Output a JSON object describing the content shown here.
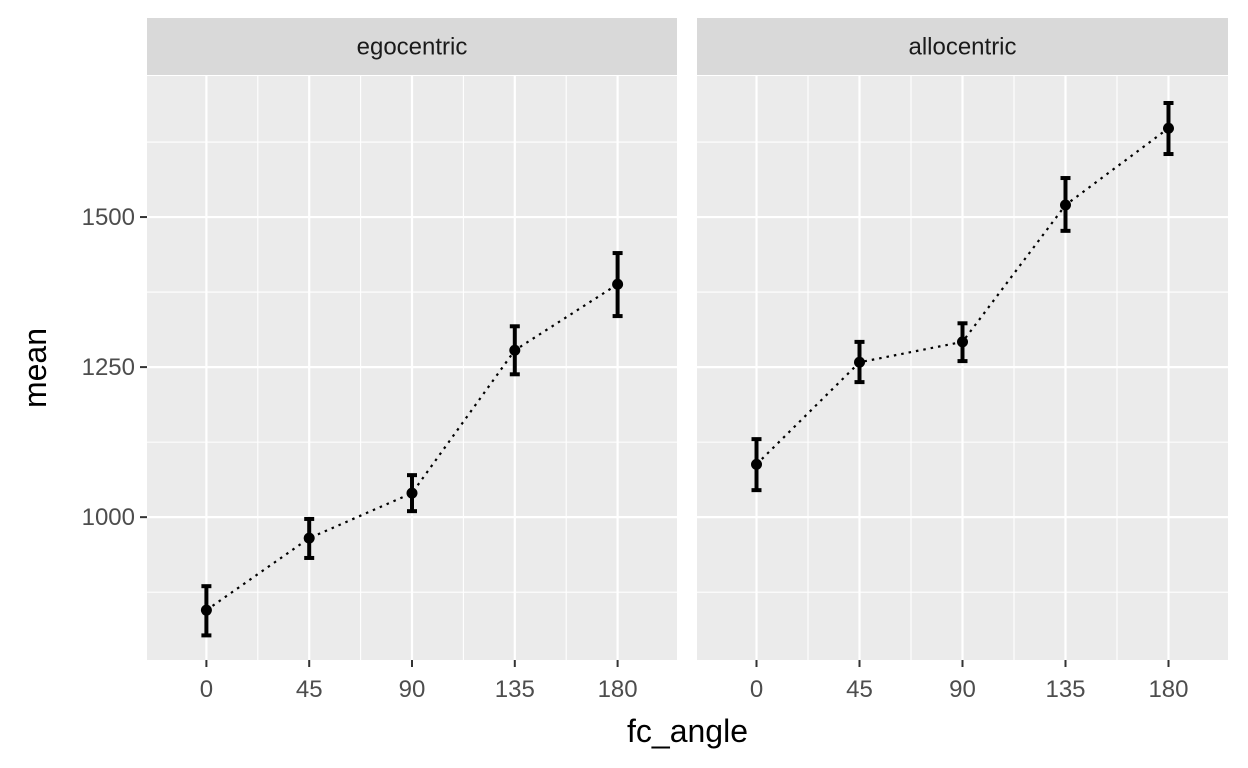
{
  "chart_data": {
    "type": "line",
    "xlabel": "fc_angle",
    "ylabel": "mean",
    "x": [
      0,
      45,
      90,
      135,
      180
    ],
    "x_ticks": [
      "0",
      "45",
      "90",
      "135",
      "180"
    ],
    "y_ticks": [
      "1000",
      "1250",
      "1500"
    ],
    "y_tick_values": [
      1000,
      1250,
      1500
    ],
    "ylim": [
      762,
      1735
    ],
    "grid": true,
    "panels": [
      {
        "label": "egocentric",
        "mean": [
          845,
          965,
          1040,
          1278,
          1388
        ],
        "lower": [
          803,
          932,
          1010,
          1238,
          1335
        ],
        "upper": [
          885,
          997,
          1070,
          1318,
          1440
        ]
      },
      {
        "label": "allocentric",
        "mean": [
          1088,
          1258,
          1292,
          1520,
          1648
        ],
        "lower": [
          1045,
          1225,
          1260,
          1477,
          1605
        ],
        "upper": [
          1130,
          1292,
          1323,
          1565,
          1690
        ]
      }
    ]
  }
}
